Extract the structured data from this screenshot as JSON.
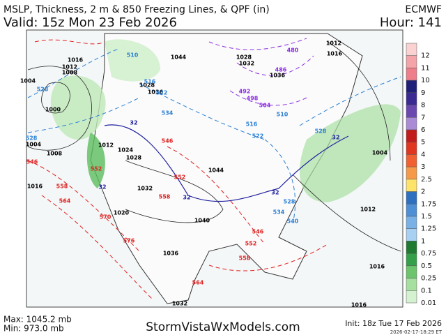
{
  "header": {
    "title": "MSLP, Thickness, 2 m & 850 Freezing Lines, & QPF (in)",
    "model": "ECMWF",
    "valid": "Valid: 15z Mon 23 Feb 2026",
    "hour": "Hour: 141"
  },
  "legend": [
    {
      "label": "12",
      "color": "#fbd2d2"
    },
    {
      "label": "11",
      "color": "#f4a3a8"
    },
    {
      "label": "10",
      "color": "#ee7f8a"
    },
    {
      "label": "9",
      "color": "#1f1f7a"
    },
    {
      "label": "8",
      "color": "#3a2a92"
    },
    {
      "label": "7",
      "color": "#6a48b0"
    },
    {
      "label": "6",
      "color": "#a98bd6"
    },
    {
      "label": "5",
      "color": "#c21b1b"
    },
    {
      "label": "4",
      "color": "#e0351f"
    },
    {
      "label": "3",
      "color": "#f06030"
    },
    {
      "label": "2.5",
      "color": "#f69a4a"
    },
    {
      "label": "2",
      "color": "#fde36a"
    },
    {
      "label": "1.75",
      "color": "#2f6fbf"
    },
    {
      "label": "1.5",
      "color": "#4f8fd6"
    },
    {
      "label": "1.25",
      "color": "#79b0e6"
    },
    {
      "label": "1",
      "color": "#a8d0f2"
    },
    {
      "label": "0.75",
      "color": "#1f7a32"
    },
    {
      "label": "0.5",
      "color": "#34a04a"
    },
    {
      "label": "0.25",
      "color": "#6cc46c"
    },
    {
      "label": "0.1",
      "color": "#a5e0a0"
    },
    {
      "label": "0.01",
      "color": "#d4f2cf"
    }
  ],
  "contour_labels": [
    {
      "text": "1016",
      "color": "#000"
    },
    {
      "text": "1012",
      "color": "#000"
    },
    {
      "text": "1008",
      "color": "#000"
    },
    {
      "text": "1004",
      "color": "#000"
    },
    {
      "text": "1000",
      "color": "#000"
    },
    {
      "text": "1004",
      "color": "#000"
    },
    {
      "text": "1008",
      "color": "#000"
    },
    {
      "text": "1016",
      "color": "#000"
    },
    {
      "text": "1024",
      "color": "#000"
    },
    {
      "text": "1028",
      "color": "#000"
    },
    {
      "text": "1032",
      "color": "#000"
    },
    {
      "text": "1020",
      "color": "#000"
    },
    {
      "text": "1040",
      "color": "#000"
    },
    {
      "text": "1044",
      "color": "#000"
    },
    {
      "text": "1036",
      "color": "#000"
    },
    {
      "text": "1032",
      "color": "#000"
    },
    {
      "text": "1044",
      "color": "#000"
    },
    {
      "text": "1028",
      "color": "#000"
    },
    {
      "text": "1036",
      "color": "#000"
    },
    {
      "text": "1032",
      "color": "#000"
    },
    {
      "text": "1028",
      "color": "#000"
    },
    {
      "text": "1036",
      "color": "#000"
    },
    {
      "text": "1012",
      "color": "#000"
    },
    {
      "text": "1016",
      "color": "#000"
    },
    {
      "text": "1004",
      "color": "#000"
    },
    {
      "text": "1012",
      "color": "#000"
    },
    {
      "text": "1016",
      "color": "#000"
    },
    {
      "text": "1016",
      "color": "#000"
    },
    {
      "text": "1012",
      "color": "#000"
    },
    {
      "text": "528",
      "color": "#2a7fd4"
    },
    {
      "text": "528",
      "color": "#2a7fd4"
    },
    {
      "text": "510",
      "color": "#2a7fd4"
    },
    {
      "text": "516",
      "color": "#2a7fd4"
    },
    {
      "text": "522",
      "color": "#2a7fd4"
    },
    {
      "text": "534",
      "color": "#2a7fd4"
    },
    {
      "text": "510",
      "color": "#2a7fd4"
    },
    {
      "text": "516",
      "color": "#2a7fd4"
    },
    {
      "text": "522",
      "color": "#2a7fd4"
    },
    {
      "text": "528",
      "color": "#2a7fd4"
    },
    {
      "text": "534",
      "color": "#2a7fd4"
    },
    {
      "text": "540",
      "color": "#2a7fd4"
    },
    {
      "text": "528",
      "color": "#2a7fd4"
    },
    {
      "text": "492",
      "color": "#8a2be2"
    },
    {
      "text": "498",
      "color": "#8a2be2"
    },
    {
      "text": "504",
      "color": "#8a2be2"
    },
    {
      "text": "486",
      "color": "#8a2be2"
    },
    {
      "text": "480",
      "color": "#8a2be2"
    },
    {
      "text": "32",
      "color": "#2020a0"
    },
    {
      "text": "32",
      "color": "#2020a0"
    },
    {
      "text": "32",
      "color": "#2020a0"
    },
    {
      "text": "32",
      "color": "#2020a0"
    },
    {
      "text": "32",
      "color": "#2020a0"
    },
    {
      "text": "546",
      "color": "#e02020"
    },
    {
      "text": "552",
      "color": "#e02020"
    },
    {
      "text": "558",
      "color": "#e02020"
    },
    {
      "text": "564",
      "color": "#e02020"
    },
    {
      "text": "570",
      "color": "#e02020"
    },
    {
      "text": "576",
      "color": "#e02020"
    },
    {
      "text": "546",
      "color": "#e02020"
    },
    {
      "text": "552",
      "color": "#e02020"
    },
    {
      "text": "558",
      "color": "#e02020"
    },
    {
      "text": "546",
      "color": "#e02020"
    },
    {
      "text": "552",
      "color": "#e02020"
    },
    {
      "text": "558",
      "color": "#e02020"
    },
    {
      "text": "564",
      "color": "#e02020"
    }
  ],
  "footer": {
    "max": "Max: 1045.2 mb",
    "min": "Min: 973.0 mb",
    "site": "StormVistaWxModels.com",
    "init": "Init: 18z Tue 17 Feb 2026",
    "stamp": "2026-02-17-18:29 ET"
  }
}
